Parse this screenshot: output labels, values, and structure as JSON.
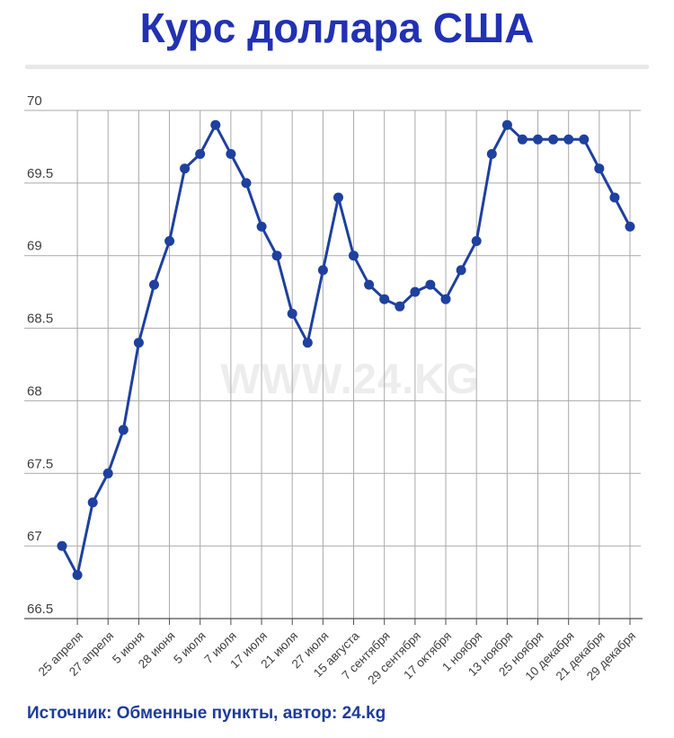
{
  "page": {
    "title": "Курс доллара США",
    "watermark": "WWW.24.KG",
    "source_line": "Источник: Обменные пункты, автор: 24.kg"
  },
  "colors": {
    "title": "#2231b3",
    "line": "#1e409f",
    "point": "#1e409f",
    "grid": "#a9a9a9",
    "axis": "#4d4d4d",
    "tick_text": "#3f3f3f",
    "watermark": "#ededed",
    "footer": "#1d3b9a",
    "divider": "#e8e8e8"
  },
  "chart_data": {
    "type": "line",
    "title": "Курс доллара США",
    "xlabel": "",
    "ylabel": "",
    "ylim": [
      66.5,
      70
    ],
    "grid": true,
    "legend": "none",
    "y_ticks": [
      "66.5",
      "67",
      "67.5",
      "68",
      "68.5",
      "69",
      "69.5",
      "70"
    ],
    "x_tick_labels": [
      "25 апреля",
      "27 апреля",
      "5 июня",
      "28 июня",
      "5 июля",
      "7 июля",
      "17 июля",
      "21 июля",
      "27 июля",
      "15 августа",
      "7 сентября",
      "29 сентября",
      "17 октября",
      "1 ноября",
      "13 ноября",
      "25 ноября",
      "10 декабря",
      "21 декабря",
      "29 декабря"
    ],
    "first_labeled_point_index": 1,
    "points_per_label": 2,
    "series": [
      {
        "name": "Курс доллара США",
        "values": [
          67.0,
          66.8,
          67.3,
          67.5,
          67.8,
          68.4,
          68.8,
          69.1,
          69.6,
          69.7,
          69.9,
          69.7,
          69.5,
          69.2,
          69.0,
          68.6,
          68.4,
          68.9,
          69.4,
          69.0,
          68.8,
          68.7,
          68.65,
          68.75,
          68.8,
          68.7,
          68.9,
          69.1,
          69.7,
          69.9,
          69.8,
          69.8,
          69.8,
          69.8,
          69.8,
          69.6,
          69.4,
          69.2
        ]
      }
    ]
  }
}
